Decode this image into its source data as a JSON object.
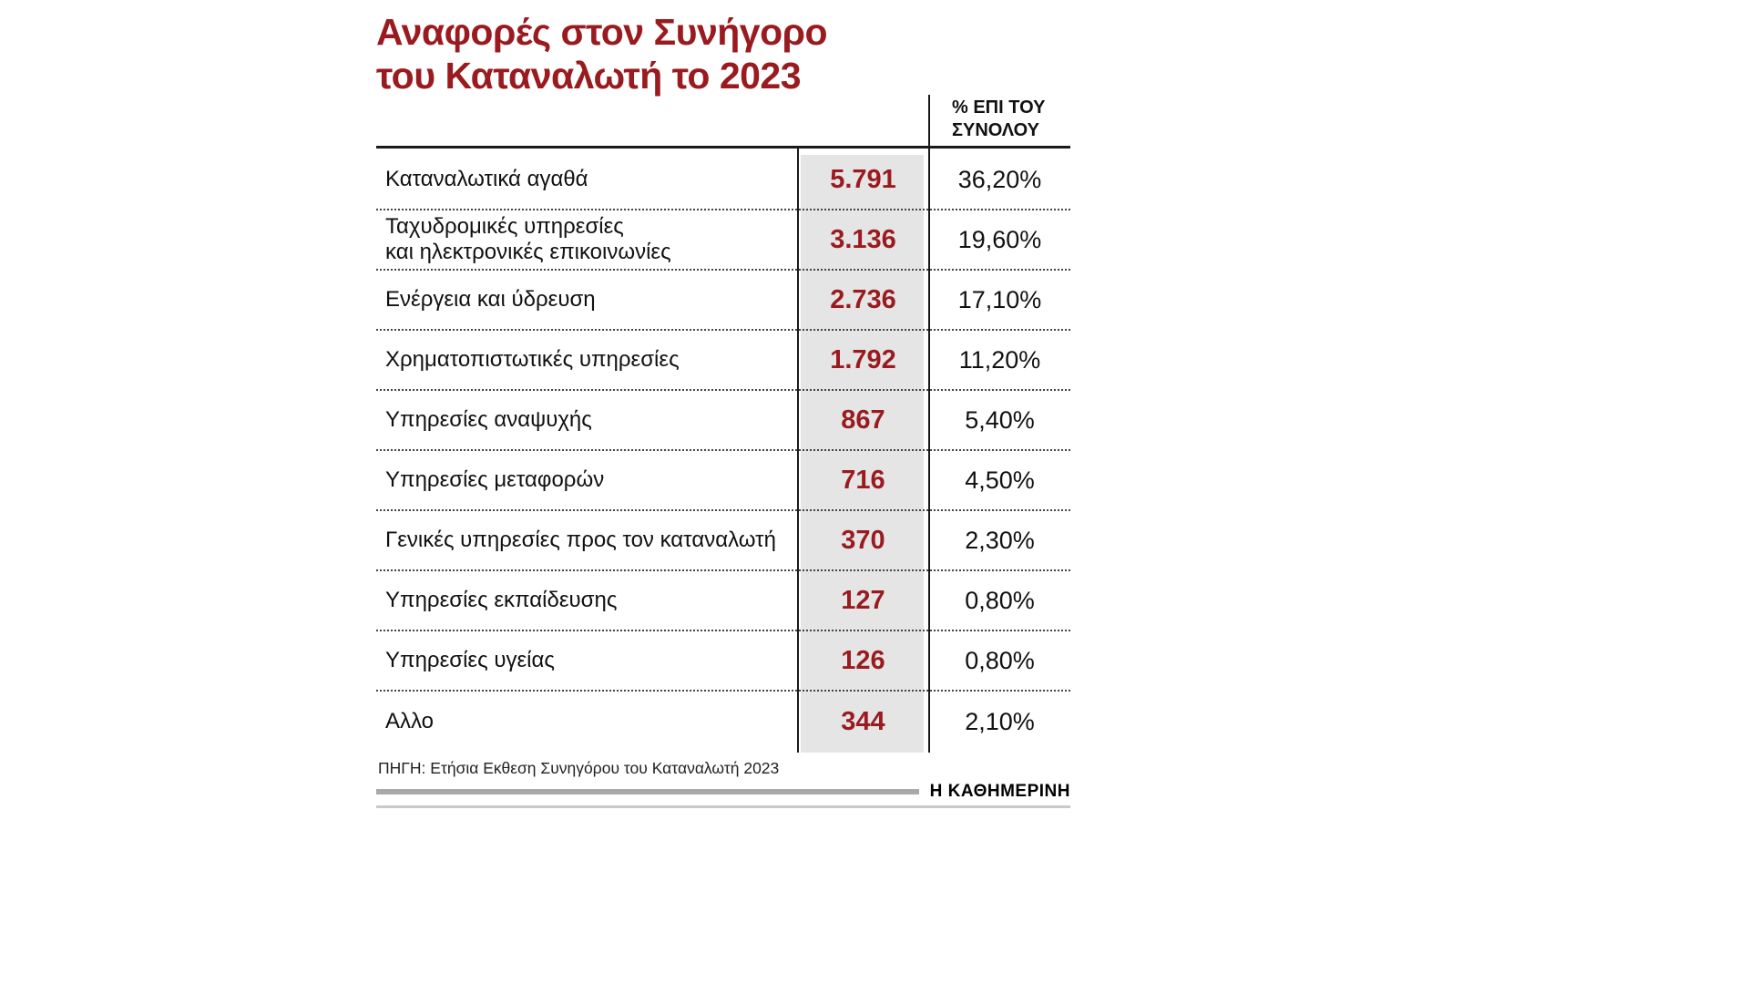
{
  "accent_color": "#9a1b1f",
  "gray_band_color": "#e5e5e5",
  "title_lines": [
    "Αναφορές στον Συνήγορο",
    "του Καταναλωτή το 2023"
  ],
  "column_header": "% ΕΠΙ ΤΟΥ ΣΥΝΟΛΟΥ",
  "source": "ΠΗΓΗ: Ετήσια Εκθεση Συνηγόρου του Καταναλωτή 2023",
  "footer_logo": "Η ΚΑΘΗΜΕΡΙΝΗ",
  "chart_data": {
    "type": "table",
    "title": "Αναφορές στον Συνήγορο του Καταναλωτή το 2023",
    "value_column_header": "% ΕΠΙ ΤΟΥ ΣΥΝΟΛΟΥ",
    "rows": [
      {
        "label": "Καταναλωτικά αγαθά",
        "count": "5.791",
        "count_num": 5791,
        "percent": "36,20%",
        "percent_num": 36.2
      },
      {
        "label": "Ταχυδρομικές υπηρεσίες\nκαι ηλεκτρονικές επικοινωνίες",
        "count": "3.136",
        "count_num": 3136,
        "percent": "19,60%",
        "percent_num": 19.6
      },
      {
        "label": "Ενέργεια και ύδρευση",
        "count": "2.736",
        "count_num": 2736,
        "percent": "17,10%",
        "percent_num": 17.1
      },
      {
        "label": "Χρηματοπιστωτικές υπηρεσίες",
        "count": "1.792",
        "count_num": 1792,
        "percent": "11,20%",
        "percent_num": 11.2
      },
      {
        "label": "Υπηρεσίες αναψυχής",
        "count": "867",
        "count_num": 867,
        "percent": "5,40%",
        "percent_num": 5.4
      },
      {
        "label": "Υπηρεσίες μεταφορών",
        "count": "716",
        "count_num": 716,
        "percent": "4,50%",
        "percent_num": 4.5
      },
      {
        "label": "Γενικές υπηρεσίες προς τον καταναλωτή",
        "count": "370",
        "count_num": 370,
        "percent": "2,30%",
        "percent_num": 2.3
      },
      {
        "label": "Υπηρεσίες εκπαίδευσης",
        "count": "127",
        "count_num": 127,
        "percent": "0,80%",
        "percent_num": 0.8
      },
      {
        "label": "Υπηρεσίες υγείας",
        "count": "126",
        "count_num": 126,
        "percent": "0,80%",
        "percent_num": 0.8
      },
      {
        "label": "Αλλο",
        "count": "344",
        "count_num": 344,
        "percent": "2,10%",
        "percent_num": 2.1
      }
    ],
    "source": "ΠΗΓΗ: Ετήσια Εκθεση Συνηγόρου του Καταναλωτή 2023"
  }
}
